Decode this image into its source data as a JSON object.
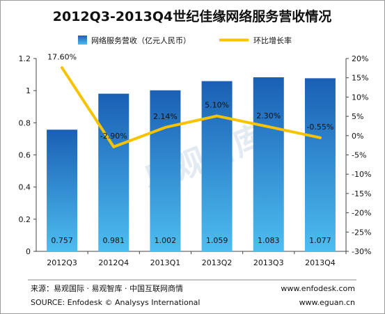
{
  "chart_data": {
    "type": "bar+line",
    "title": "2012Q3-2013Q4世纪佳缘网络服务营收情况",
    "categories": [
      "2012Q3",
      "2012Q4",
      "2013Q1",
      "2013Q2",
      "2013Q3",
      "2013Q4"
    ],
    "series": [
      {
        "name": "网络服务营收（亿元人民币）",
        "type": "bar",
        "axis": "left",
        "values": [
          0.757,
          0.981,
          1.002,
          1.059,
          1.083,
          1.077
        ],
        "value_labels": [
          "0.757",
          "0.981",
          "1.002",
          "1.059",
          "1.083",
          "1.077"
        ]
      },
      {
        "name": "环比增长率",
        "type": "line",
        "axis": "right",
        "values": [
          17.6,
          -2.9,
          2.14,
          5.1,
          2.3,
          -0.55
        ],
        "value_labels": [
          "17.60%",
          "-2.90%",
          "2.14%",
          "5.10%",
          "2.30%",
          "-0.55%"
        ]
      }
    ],
    "y_left": {
      "range": [
        0,
        1.2
      ],
      "ticks": [
        0,
        0.2,
        0.4,
        0.6,
        0.8,
        1,
        1.2
      ],
      "tick_labels": [
        "0",
        "0.2",
        "0.4",
        "0.6",
        "0.8",
        "1",
        "1.2"
      ]
    },
    "y_right": {
      "range": [
        -30,
        20
      ],
      "ticks": [
        20,
        15,
        10,
        5,
        0,
        -5,
        -10,
        -15,
        -20,
        -25,
        -30
      ],
      "tick_labels": [
        "20%",
        "15%",
        "10%",
        "5%",
        "0%",
        "-5%",
        "-10%",
        "-15%",
        "-20%",
        "-25%",
        "-30%"
      ]
    },
    "grid": false,
    "legend_position": "top",
    "watermark": "易观智库",
    "colors": {
      "bar_top": "#1a5fb4",
      "bar_bottom": "#4dbdf0",
      "line": "#f7c200",
      "title": "#111111",
      "axis": "#444444"
    }
  },
  "footer": {
    "source_cn": "来源：易观国际 · 易观智库 · 中国互联网商情",
    "source_en": "SOURCE: Enfodesk © Analysys International",
    "url1": "www.enfodesk.com",
    "url2": "www.eguan.cn"
  }
}
